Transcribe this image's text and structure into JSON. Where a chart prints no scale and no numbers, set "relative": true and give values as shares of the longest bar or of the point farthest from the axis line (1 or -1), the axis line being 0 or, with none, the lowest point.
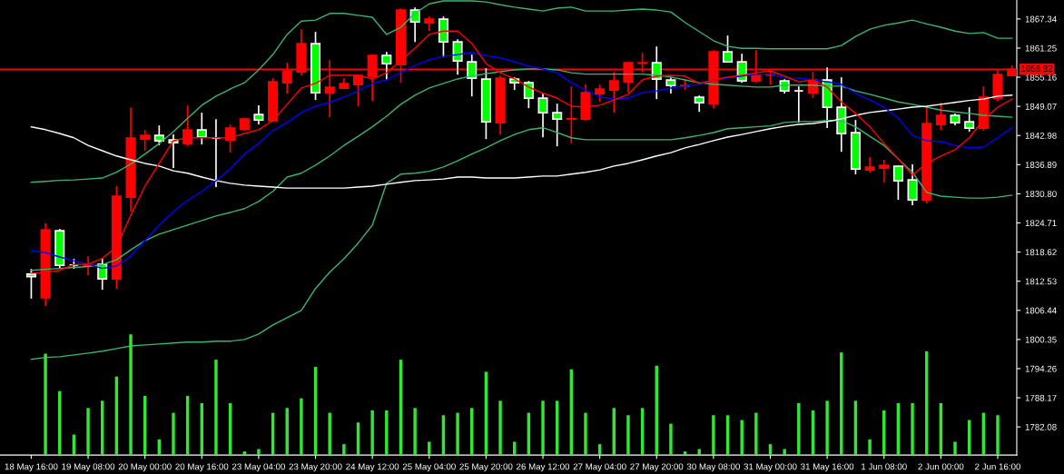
{
  "chart_data": [
    {
      "type": "candlestick",
      "categories": [
        "18 May 16:00",
        null,
        null,
        null,
        "19 May 08:00",
        null,
        null,
        null,
        "20 May 00:00",
        null,
        null,
        null,
        "20 May 16:00",
        null,
        null,
        null,
        "23 May 04:00",
        null,
        null,
        null,
        "23 May 20:00",
        null,
        null,
        null,
        "24 May 12:00",
        null,
        null,
        null,
        "25 May 04:00",
        null,
        null,
        null,
        "25 May 20:00",
        null,
        null,
        null,
        "26 May 12:00",
        null,
        null,
        null,
        "27 May 04:00",
        null,
        null,
        null,
        "27 May 20:00",
        null,
        null,
        null,
        "30 May 08:00",
        null,
        null,
        null,
        "31 May 00:00",
        null,
        null,
        null,
        "31 May 16:00",
        null,
        null,
        null,
        "1 Jun 08:00",
        null,
        null,
        null,
        "2 Jun 00:00",
        null,
        null,
        null,
        "2 Jun 16:00",
        null
      ],
      "ohlc": [
        [
          1814.0,
          1815.1,
          1808.9,
          1813.5
        ],
        [
          1809.05,
          1824.6,
          1807.34,
          1823.27
        ],
        [
          1823.08,
          1823.46,
          1815.3,
          1815.87
        ],
        [
          1815.9,
          1817.2,
          1815.1,
          1815.9
        ],
        [
          1815.8,
          1817.8,
          1813.8,
          1816.0
        ],
        [
          1816.06,
          1817.39,
          1810.75,
          1813.03
        ],
        [
          1813.03,
          1832.38,
          1810.94,
          1830.29
        ],
        [
          1830.1,
          1848.88,
          1827.07,
          1842.43
        ],
        [
          1842.24,
          1844.14,
          1839.78,
          1843.0
        ],
        [
          1843.0,
          1845.09,
          1840.92,
          1841.86
        ],
        [
          1842.05,
          1843.19,
          1836.17,
          1841.48
        ],
        [
          1841.29,
          1849.27,
          1840.73,
          1844.14
        ],
        [
          1844.14,
          1847.74,
          1841.1,
          1842.62
        ],
        [
          1842.43,
          1846.4,
          1832.2,
          1842.43
        ],
        [
          1842.05,
          1845.28,
          1839.4,
          1844.52
        ],
        [
          1844.33,
          1846.6,
          1843.95,
          1846.42
        ],
        [
          1847.37,
          1849.27,
          1845.28,
          1846.23
        ],
        [
          1846.04,
          1854.95,
          1845.85,
          1854.19
        ],
        [
          1854.0,
          1858.18,
          1851.73,
          1856.47
        ],
        [
          1856.28,
          1865.2,
          1855.52,
          1862.16
        ],
        [
          1862.16,
          1864.63,
          1850.4,
          1851.92
        ],
        [
          1851.92,
          1858.75,
          1846.8,
          1853.06
        ],
        [
          1852.87,
          1854.95,
          1852.68,
          1853.82
        ],
        [
          1853.63,
          1855.71,
          1849.07,
          1855.52
        ],
        [
          1855.33,
          1859.88,
          1850.21,
          1859.7
        ],
        [
          1859.7,
          1860.45,
          1854.57,
          1857.99
        ],
        [
          1857.8,
          1869.56,
          1854.0,
          1869.18
        ],
        [
          1869.18,
          1869.75,
          1862.54,
          1866.71
        ],
        [
          1866.52,
          1867.85,
          1864.82,
          1867.28
        ],
        [
          1867.28,
          1867.85,
          1859.32,
          1862.54
        ],
        [
          1862.54,
          1863.11,
          1855.71,
          1858.56
        ],
        [
          1858.37,
          1859.88,
          1851.16,
          1854.95
        ],
        [
          1854.76,
          1857.04,
          1842.24,
          1845.85
        ],
        [
          1845.66,
          1855.52,
          1843.19,
          1854.95
        ],
        [
          1854.76,
          1855.14,
          1852.49,
          1854.0
        ],
        [
          1854.0,
          1854.38,
          1848.69,
          1850.78
        ],
        [
          1850.78,
          1851.73,
          1842.62,
          1847.74
        ],
        [
          1847.74,
          1849.64,
          1840.73,
          1846.42
        ],
        [
          1846.42,
          1853.25,
          1841.29,
          1846.5
        ],
        [
          1846.42,
          1853.63,
          1846.04,
          1851.92
        ],
        [
          1851.73,
          1853.63,
          1850.02,
          1852.68
        ],
        [
          1852.49,
          1856.28,
          1847.74,
          1854.38
        ],
        [
          1854.19,
          1858.37,
          1851.92,
          1858.18
        ],
        [
          1858.1,
          1860.26,
          1856.09,
          1858.18
        ],
        [
          1858.18,
          1861.59,
          1850.59,
          1854.76
        ],
        [
          1854.57,
          1855.14,
          1851.73,
          1853.44
        ],
        [
          1853.3,
          1854.76,
          1852.49,
          1853.44
        ],
        [
          1850.97,
          1851.35,
          1847.93,
          1849.83
        ],
        [
          1849.64,
          1860.83,
          1848.69,
          1860.45
        ],
        [
          1860.45,
          1863.87,
          1858.18,
          1858.37
        ],
        [
          1858.37,
          1860.07,
          1854.0,
          1854.38
        ],
        [
          1854.38,
          1860.83,
          1854.0,
          1855.52
        ],
        [
          1855.6,
          1856.85,
          1853.63,
          1855.71
        ],
        [
          1854.38,
          1854.76,
          1851.73,
          1852.3
        ],
        [
          1852.3,
          1853.25,
          1845.66,
          1852.3
        ],
        [
          1851.92,
          1856.28,
          1850.78,
          1854.57
        ],
        [
          1854.57,
          1857.23,
          1844.52,
          1848.88
        ],
        [
          1848.88,
          1855.14,
          1839.59,
          1843.38
        ],
        [
          1843.57,
          1846.23,
          1834.84,
          1835.98
        ],
        [
          1835.79,
          1838.45,
          1835.22,
          1836.36
        ],
        [
          1836.17,
          1837.88,
          1833.14,
          1836.74
        ],
        [
          1836.55,
          1836.74,
          1829.53,
          1833.52
        ],
        [
          1833.71,
          1836.93,
          1828.4,
          1829.53
        ],
        [
          1829.53,
          1848.88,
          1828.77,
          1845.47
        ],
        [
          1845.28,
          1849.83,
          1844.14,
          1847.18
        ],
        [
          1847.18,
          1847.56,
          1845.09,
          1845.66
        ],
        [
          1845.85,
          1848.88,
          1843.76,
          1844.52
        ],
        [
          1844.52,
          1853.25,
          1843.95,
          1850.97
        ],
        [
          1850.78,
          1856.66,
          1850.21,
          1855.71
        ],
        [
          1855.52,
          1857.61,
          1855.33,
          1856.82
        ]
      ],
      "colors": [
        "#00ff00",
        "#ff0000",
        "#00ff00",
        "#ffffff",
        "#ff0000",
        "#00ff00",
        "#ff0000",
        "#ff0000",
        "#ff0000",
        "#00ff00",
        "#00ff00",
        "#ff0000",
        "#00ff00",
        "#ffffff",
        "#ff0000",
        "#ff0000",
        "#00ff00",
        "#ff0000",
        "#ff0000",
        "#ff0000",
        "#00ff00",
        "#ff0000",
        "#ff0000",
        "#ff0000",
        "#ff0000",
        "#00ff00",
        "#ff0000",
        "#00ff00",
        "#ff0000",
        "#00ff00",
        "#00ff00",
        "#00ff00",
        "#00ff00",
        "#ff0000",
        "#00ff00",
        "#00ff00",
        "#00ff00",
        "#00ff00",
        "#ff0000",
        "#ff0000",
        "#ff0000",
        "#ff0000",
        "#ff0000",
        "#ff0000",
        "#00ff00",
        "#00ff00",
        "#ff0000",
        "#00ff00",
        "#ff0000",
        "#00ff00",
        "#00ff00",
        "#ff0000",
        "#ff0000",
        "#00ff00",
        "#ffffff",
        "#ff0000",
        "#00ff00",
        "#00ff00",
        "#00ff00",
        "#ff0000",
        "#ff0000",
        "#00ff00",
        "#00ff00",
        "#ff0000",
        "#ff0000",
        "#00ff00",
        "#00ff00",
        "#ff0000",
        "#ff0000",
        "#ff0000"
      ],
      "series": [
        {
          "type": "line",
          "color": "#3cb371",
          "values": [
            1833.2,
            1833.4,
            1833.6,
            1833.7,
            1833.9,
            1834.1,
            1835.3,
            1837.0,
            1839.1,
            1841.3,
            1843.8,
            1846.6,
            1849.3,
            1851.2,
            1852.7,
            1854.0,
            1856.7,
            1859.9,
            1864.1,
            1866.9,
            1867.1,
            1868.5,
            1868.5,
            1868.1,
            1867.7,
            1864.1,
            1865.6,
            1868.5,
            1870.5,
            1871.1,
            1871.1,
            1871.1,
            1870.9,
            1870.3,
            1869.8,
            1869.4,
            1869.0,
            1869.6,
            1869.8,
            1869.0,
            1869.0,
            1869.0,
            1869.2,
            1869.4,
            1869.2,
            1868.8,
            1866.6,
            1864.7,
            1862.8,
            1861.6,
            1861.2,
            1861.2,
            1861.1,
            1861.1,
            1861.1,
            1861.1,
            1861.1,
            1861.8,
            1863.7,
            1865.2,
            1866.0,
            1866.5,
            1867.1,
            1866.3,
            1865.6,
            1864.8,
            1864.3,
            1864.5,
            1863.3,
            1863.3
          ]
        },
        {
          "type": "line",
          "color": "#3cb371",
          "values": [
            1814.8,
            1815.0,
            1815.2,
            1815.4,
            1815.6,
            1816.0,
            1817.0,
            1819.1,
            1821.0,
            1822.35,
            1823.3,
            1824.25,
            1825.2,
            1826.15,
            1826.9,
            1827.7,
            1829.2,
            1831.3,
            1834.3,
            1835.1,
            1836.8,
            1838.7,
            1840.9,
            1842.8,
            1844.8,
            1847.0,
            1849.5,
            1851.4,
            1852.9,
            1853.85,
            1854.8,
            1855.4,
            1855.9,
            1856.3,
            1856.7,
            1856.9,
            1856.9,
            1856.7,
            1856.1,
            1855.8,
            1855.8,
            1855.8,
            1855.8,
            1855.8,
            1855.6,
            1855.2,
            1854.6,
            1854.0,
            1853.7,
            1853.5,
            1853.3,
            1853.1,
            1853.1,
            1853.5,
            1853.5,
            1853.5,
            1853.3,
            1853.3,
            1852.3,
            1851.6,
            1850.8,
            1850.0,
            1849.5,
            1848.9,
            1848.3,
            1847.9,
            1847.6,
            1847.2,
            1847.0,
            1846.8
          ]
        },
        {
          "type": "line",
          "color": "#3cb371",
          "values": [
            1796.2,
            1796.6,
            1796.75,
            1797.13,
            1797.5,
            1797.9,
            1798.45,
            1799.0,
            1799.2,
            1799.4,
            1799.6,
            1799.8,
            1799.8,
            1800.0,
            1800.0,
            1800.35,
            1801.5,
            1803.4,
            1804.9,
            1806.4,
            1811.0,
            1814.4,
            1817.2,
            1820.5,
            1824.25,
            1833.0,
            1834.9,
            1835.1,
            1835.5,
            1836.4,
            1837.7,
            1839.1,
            1840.4,
            1841.9,
            1843.2,
            1844.2,
            1844.6,
            1843.6,
            1842.5,
            1842.1,
            1842.1,
            1842.1,
            1842.1,
            1842.1,
            1842.1,
            1842.1,
            1842.5,
            1843.0,
            1843.6,
            1844.4,
            1844.6,
            1844.8,
            1845.0,
            1845.7,
            1845.9,
            1845.9,
            1846.1,
            1846.1,
            1844.8,
            1842.8,
            1840.9,
            1838.1,
            1835.3,
            1831.1,
            1830.3,
            1830.1,
            1829.9,
            1829.9,
            1830.1,
            1830.5
          ]
        },
        {
          "type": "line",
          "color": "#ffffff",
          "values": [
            1844.8,
            1844.2,
            1843.4,
            1842.5,
            1840.9,
            1839.8,
            1838.7,
            1837.9,
            1837.15,
            1836.6,
            1835.6,
            1835.1,
            1834.3,
            1833.55,
            1833.0,
            1832.6,
            1832.4,
            1832.2,
            1832.0,
            1832.0,
            1832.0,
            1832.0,
            1832.0,
            1832.2,
            1832.4,
            1832.8,
            1833.2,
            1833.55,
            1833.7,
            1833.9,
            1834.3,
            1834.3,
            1834.1,
            1834.1,
            1834.1,
            1834.3,
            1834.5,
            1834.5,
            1834.9,
            1835.3,
            1835.8,
            1836.6,
            1837.15,
            1837.9,
            1838.7,
            1839.4,
            1840.4,
            1841.1,
            1841.9,
            1842.65,
            1843.2,
            1843.8,
            1844.4,
            1844.9,
            1845.3,
            1845.5,
            1845.9,
            1846.45,
            1847.2,
            1847.8,
            1848.15,
            1848.5,
            1848.9,
            1849.1,
            1849.5,
            1849.9,
            1850.3,
            1850.6,
            1851.2,
            1851.4
          ]
        },
        {
          "type": "line",
          "color": "#0000ff",
          "values": [
            1818.9,
            1818.5,
            1817.6,
            1816.8,
            1816.1,
            1815.2,
            1815.7,
            1817.8,
            1821.0,
            1824.25,
            1827.1,
            1829.4,
            1831.3,
            1833.55,
            1836.0,
            1839.1,
            1841.3,
            1844.0,
            1845.7,
            1847.8,
            1849.1,
            1849.9,
            1851.0,
            1852.3,
            1853.85,
            1854.6,
            1856.1,
            1857.6,
            1858.8,
            1859.5,
            1859.9,
            1860.3,
            1859.7,
            1859.2,
            1858.4,
            1857.45,
            1856.9,
            1856.1,
            1854.0,
            1852.5,
            1851.0,
            1850.6,
            1850.8,
            1851.95,
            1852.3,
            1852.9,
            1853.3,
            1853.7,
            1854.6,
            1855.0,
            1855.4,
            1855.8,
            1855.8,
            1855.0,
            1855.0,
            1854.6,
            1854.2,
            1853.7,
            1851.8,
            1850.4,
            1848.9,
            1846.6,
            1843.0,
            1841.9,
            1841.7,
            1840.9,
            1840.4,
            1840.55,
            1842.5,
            1844.6
          ]
        },
        {
          "type": "line",
          "color": "#ff0000",
          "values": [
            1814.2,
            1814.4,
            1814.8,
            1816.0,
            1816.1,
            1817.3,
            1819.7,
            1826.3,
            1832.4,
            1837.15,
            1841.9,
            1842.5,
            1842.5,
            1842.5,
            1842.5,
            1843.4,
            1844.2,
            1846.1,
            1849.5,
            1852.9,
            1853.85,
            1855.55,
            1855.55,
            1855.55,
            1854.8,
            1856.1,
            1858.6,
            1861.25,
            1864.1,
            1864.8,
            1864.8,
            1862.2,
            1858.0,
            1856.1,
            1854.8,
            1853.1,
            1851.8,
            1850.8,
            1849.1,
            1848.9,
            1849.3,
            1850.4,
            1851.6,
            1854.6,
            1855.4,
            1855.55,
            1855.4,
            1853.85,
            1854.6,
            1855.2,
            1855.55,
            1856.1,
            1856.5,
            1855.4,
            1854.2,
            1854.6,
            1853.1,
            1850.0,
            1847.6,
            1844.8,
            1841.3,
            1838.1,
            1834.7,
            1837.15,
            1838.7,
            1840.0,
            1842.5,
            1846.3,
            1848.9,
            1850.6
          ]
        }
      ],
      "ylim": [
        1776.2,
        1871.3
      ],
      "yticks": [
        1867.34,
        1861.25,
        1855.16,
        1849.07,
        1842.98,
        1836.89,
        {
          "value": 1830.8,
          "label": "1830.80"
        },
        1824.71,
        1818.62,
        1812.53,
        1806.44,
        1800.35,
        1794.26,
        1788.17,
        1782.08
      ],
      "ref_lines": [
        {
          "axis": "y",
          "value": 1856.82,
          "label": "1856.82",
          "color": "#ff0000"
        }
      ],
      "grid": false
    },
    {
      "type": "bar",
      "relative": true,
      "tick_labels": false,
      "color": "#32e632",
      "categories": [
        null,
        null,
        null,
        null,
        null,
        null,
        null,
        null,
        null,
        null,
        null,
        null,
        null,
        null,
        null,
        null,
        null,
        null,
        null,
        null,
        null,
        null,
        null,
        null,
        null,
        null,
        null,
        null,
        null,
        null,
        null,
        null,
        null,
        null,
        null,
        null,
        null,
        null,
        null,
        null,
        null,
        null,
        null,
        null,
        null,
        null,
        null,
        null,
        null,
        null,
        null,
        null,
        null,
        null,
        null,
        null,
        null,
        null,
        null,
        null,
        null,
        null,
        null,
        null,
        null,
        null,
        null,
        null,
        null,
        null
      ],
      "values": [
        null,
        0.84,
        0.53,
        0.17,
        0.39,
        0.45,
        0.65,
        1,
        0.49,
        0.13,
        0.35,
        0.49,
        0.43,
        0.79,
        0.43,
        0.03,
        0.05,
        0.35,
        0.39,
        0.47,
        0.73,
        0.35,
        0.09,
        0.27,
        0.37,
        0.37,
        0.79,
        0.39,
        0.11,
        0.33,
        0.35,
        0.39,
        0.69,
        0.45,
        0.11,
        0.35,
        0.45,
        0.45,
        0.71,
        0.35,
        0.09,
        0.39,
        0.33,
        0.39,
        0.74,
        0.26,
        0.03,
        0.05,
        0.33,
        0.33,
        0.29,
        0.35,
        0.09,
        0.05,
        0.43,
        0.37,
        0.45,
        0.85,
        0.45,
        0.13,
        0.37,
        0.43,
        0.43,
        0.86,
        0.43,
        0.11,
        0.29,
        0.35,
        0.33,
        0
      ]
    }
  ]
}
